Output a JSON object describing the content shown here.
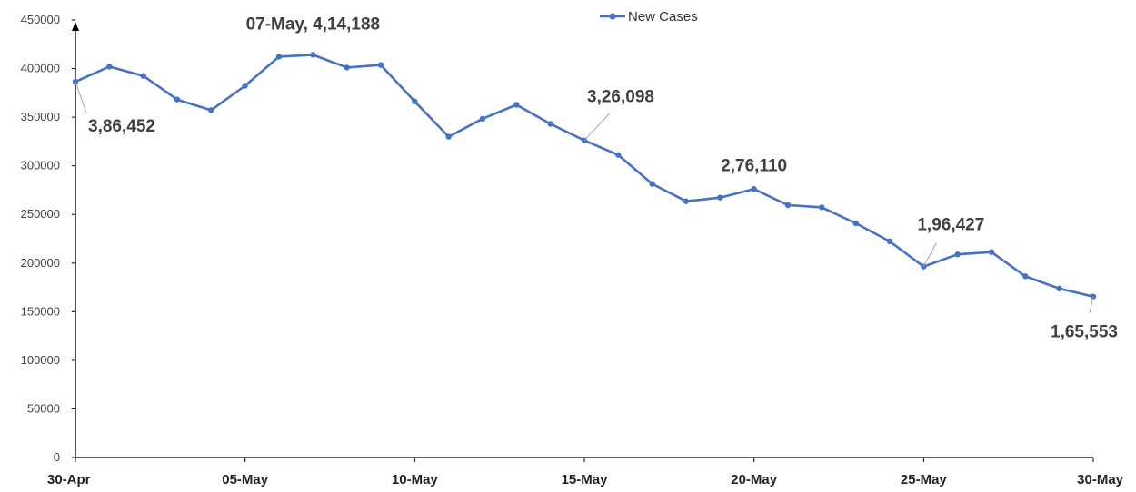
{
  "chart_data": {
    "type": "line",
    "legend_position": "top-center",
    "grid": false,
    "ylim": [
      0,
      450000
    ],
    "yticks": [
      0,
      50000,
      100000,
      150000,
      200000,
      250000,
      300000,
      350000,
      400000,
      450000
    ],
    "xticks": [
      "30-Apr",
      "05-May",
      "10-May",
      "15-May",
      "20-May",
      "25-May",
      "30-May"
    ],
    "x": [
      "30-Apr",
      "01-May",
      "02-May",
      "03-May",
      "04-May",
      "05-May",
      "06-May",
      "07-May",
      "08-May",
      "09-May",
      "10-May",
      "11-May",
      "12-May",
      "13-May",
      "14-May",
      "15-May",
      "16-May",
      "17-May",
      "18-May",
      "19-May",
      "20-May",
      "21-May",
      "22-May",
      "23-May",
      "24-May",
      "25-May",
      "26-May",
      "27-May",
      "28-May",
      "29-May",
      "30-May"
    ],
    "series": [
      {
        "name": "New Cases",
        "color": "#4472C4",
        "values": [
          386452,
          401993,
          392488,
          368147,
          357229,
          382315,
          412262,
          414188,
          401078,
          403738,
          366161,
          329942,
          348421,
          362727,
          343144,
          326098,
          311170,
          281386,
          263533,
          267334,
          276110,
          259551,
          257299,
          240842,
          222315,
          196427,
          208921,
          211298,
          186364,
          173790,
          165553
        ]
      }
    ],
    "annotations": [
      {
        "text": "3,86,452",
        "index": 0
      },
      {
        "text": "07-May, 4,14,188",
        "index": 7
      },
      {
        "text": "3,26,098",
        "index": 15
      },
      {
        "text": "2,76,110",
        "index": 20
      },
      {
        "text": "1,96,427",
        "index": 25
      },
      {
        "text": "1,65,553",
        "index": 30
      }
    ]
  }
}
